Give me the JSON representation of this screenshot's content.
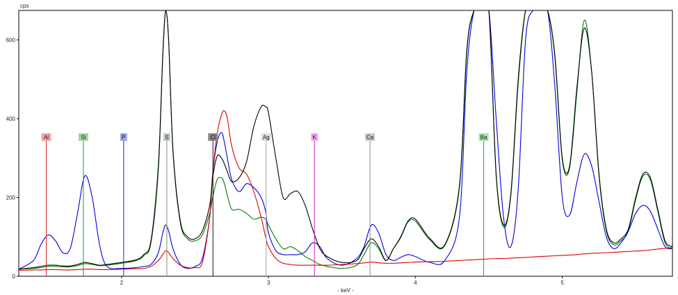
{
  "chart_data": {
    "type": "line",
    "xlabel": "- keV -",
    "ylabel": "cps",
    "xlim": [
      1.3,
      5.75
    ],
    "ylim": [
      0,
      675
    ],
    "xticks": [
      2,
      3,
      4,
      5
    ],
    "yticks": [
      0,
      200,
      400,
      600
    ],
    "grid": false,
    "x": [
      1.3,
      1.4,
      1.45,
      1.5,
      1.55,
      1.6,
      1.65,
      1.7,
      1.75,
      1.8,
      1.85,
      1.9,
      2.0,
      2.1,
      2.15,
      2.2,
      2.25,
      2.28,
      2.3,
      2.32,
      2.35,
      2.4,
      2.45,
      2.5,
      2.55,
      2.6,
      2.62,
      2.65,
      2.68,
      2.7,
      2.72,
      2.75,
      2.8,
      2.85,
      2.9,
      2.95,
      2.98,
      3.0,
      3.05,
      3.1,
      3.15,
      3.2,
      3.25,
      3.3,
      3.35,
      3.4,
      3.5,
      3.6,
      3.65,
      3.7,
      3.75,
      3.8,
      3.85,
      3.9,
      3.95,
      4.0,
      4.1,
      4.2,
      4.3,
      4.35,
      4.4,
      4.45,
      4.5,
      4.55,
      4.6,
      4.65,
      4.7,
      4.75,
      4.8,
      4.85,
      4.9,
      4.95,
      5.0,
      5.05,
      5.1,
      5.15,
      5.2,
      5.25,
      5.3,
      5.35,
      5.4,
      5.45,
      5.5,
      5.55,
      5.6,
      5.65,
      5.7,
      5.75
    ],
    "series": [
      {
        "color": "#000000",
        "values": [
          18,
          22,
          25,
          28,
          28,
          26,
          26,
          30,
          35,
          32,
          28,
          30,
          35,
          42,
          55,
          90,
          280,
          560,
          680,
          600,
          320,
          140,
          100,
          95,
          115,
          180,
          250,
          305,
          300,
          285,
          265,
          240,
          250,
          290,
          380,
          430,
          430,
          415,
          300,
          200,
          210,
          215,
          180,
          120,
          70,
          50,
          35,
          40,
          70,
          95,
          75,
          40,
          70,
          100,
          140,
          145,
          95,
          80,
          230,
          575,
          700,
          700,
          700,
          260,
          130,
          210,
          500,
          700,
          700,
          700,
          700,
          560,
          300,
          280,
          480,
          630,
          520,
          260,
          120,
          85,
          95,
          120,
          200,
          260,
          250,
          170,
          90,
          75
        ],
        "color_vals": null
      },
      {
        "color": "#007a00",
        "values": [
          18,
          20,
          22,
          25,
          25,
          24,
          24,
          27,
          32,
          30,
          27,
          28,
          33,
          40,
          52,
          85,
          270,
          555,
          680,
          600,
          315,
          135,
          95,
          90,
          105,
          160,
          200,
          245,
          250,
          235,
          205,
          170,
          170,
          160,
          145,
          150,
          145,
          130,
          95,
          70,
          75,
          65,
          50,
          40,
          30,
          25,
          20,
          28,
          55,
          85,
          70,
          40,
          70,
          98,
          138,
          140,
          92,
          78,
          225,
          570,
          700,
          700,
          700,
          255,
          125,
          205,
          490,
          700,
          700,
          700,
          700,
          555,
          295,
          275,
          470,
          650,
          520,
          255,
          115,
          80,
          90,
          115,
          195,
          255,
          245,
          165,
          85,
          70
        ]
      },
      {
        "color": "#0000dd",
        "values": [
          18,
          40,
          80,
          105,
          90,
          60,
          70,
          160,
          255,
          200,
          80,
          25,
          20,
          22,
          25,
          30,
          60,
          110,
          130,
          115,
          70,
          30,
          20,
          25,
          45,
          150,
          260,
          340,
          365,
          340,
          300,
          245,
          215,
          235,
          225,
          200,
          165,
          110,
          65,
          55,
          55,
          55,
          62,
          85,
          75,
          45,
          28,
          45,
          75,
          130,
          110,
          55,
          40,
          48,
          55,
          50,
          35,
          40,
          150,
          520,
          700,
          700,
          700,
          400,
          150,
          75,
          220,
          600,
          700,
          700,
          700,
          480,
          200,
          155,
          240,
          310,
          280,
          190,
          100,
          70,
          85,
          115,
          160,
          180,
          165,
          120,
          75,
          70
        ]
      },
      {
        "color": "#dd0000",
        "values": [
          15,
          16,
          16,
          17,
          17,
          16,
          16,
          17,
          18,
          18,
          17,
          17,
          18,
          19,
          20,
          25,
          40,
          55,
          65,
          60,
          45,
          28,
          22,
          22,
          35,
          150,
          260,
          360,
          410,
          420,
          400,
          330,
          275,
          260,
          215,
          150,
          100,
          75,
          45,
          33,
          30,
          28,
          28,
          28,
          28,
          28,
          30,
          32,
          34,
          36,
          34,
          33,
          33,
          34,
          35,
          36,
          37,
          38,
          40,
          41,
          42,
          43,
          44,
          45,
          45,
          46,
          47,
          48,
          49,
          50,
          51,
          52,
          53,
          54,
          55,
          57,
          58,
          59,
          60,
          61,
          62,
          63,
          64,
          65,
          67,
          69,
          71,
          73
        ]
      }
    ],
    "markers": [
      {
        "label": "Al",
        "x": 1.487,
        "color": "#dd2222",
        "bg": "#f4a4a4"
      },
      {
        "label": "Si",
        "x": 1.74,
        "color": "#229922",
        "bg": "#a4d4a4"
      },
      {
        "label": "P",
        "x": 2.014,
        "color": "#2222cc",
        "bg": "#a4a4ee"
      },
      {
        "label": "S",
        "x": 2.308,
        "color": "#888888",
        "bg": "#c8c8c8"
      },
      {
        "label": "Cl",
        "x": 2.622,
        "color": "#111111",
        "bg": "#888888"
      },
      {
        "label": "Ag",
        "x": 2.984,
        "color": "#aaaaaa",
        "bg": "#dddddd"
      },
      {
        "label": "K",
        "x": 3.313,
        "color": "#cc22cc",
        "bg": "#f4a4f4"
      },
      {
        "label": "Ca",
        "x": 3.691,
        "color": "#888888",
        "bg": "#c8c8c8"
      },
      {
        "label": "Ba",
        "x": 4.465,
        "color": "#22aa22",
        "bg": "#a4e4a4"
      }
    ]
  }
}
